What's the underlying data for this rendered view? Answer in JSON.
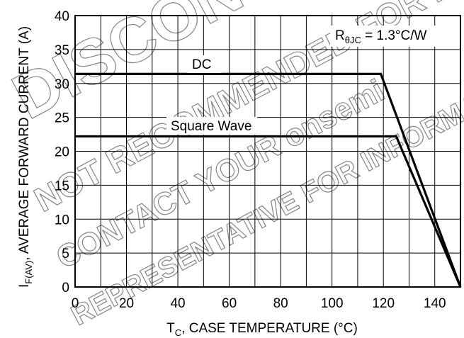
{
  "chart_data": {
    "type": "line",
    "xlabel": {
      "prefix": "T",
      "sub": "C",
      "rest": ", CASE TEMPERATURE (°C)"
    },
    "ylabel": {
      "prefix": "I",
      "sub": "F(AV)",
      "rest": ", AVERAGE FORWARD CURRENT (A)"
    },
    "xlim": [
      0,
      150
    ],
    "ylim": [
      0,
      40
    ],
    "xticks": [
      0,
      20,
      40,
      60,
      80,
      100,
      120,
      140
    ],
    "yticks": [
      0,
      5,
      10,
      15,
      20,
      25,
      30,
      35,
      40
    ],
    "grid": true,
    "grid_x_step": 10,
    "grid_y_step": 5,
    "series": [
      {
        "name": "DC",
        "x": [
          0,
          119,
          150
        ],
        "y": [
          31.4,
          31.4,
          0
        ]
      },
      {
        "name": "Square Wave",
        "x": [
          0,
          125,
          150
        ],
        "y": [
          22.2,
          22.2,
          0
        ]
      }
    ],
    "annotation": {
      "prefix": "R",
      "sub": "θJC",
      "rest": " = 1.3°C/W"
    }
  },
  "watermark": {
    "lines": [
      "DISCONTINUED",
      "NOT RECOMMENDED FOR NEW DESIGN",
      "CONTACT YOUR onsemi",
      "REPRESENTATIVE FOR INFORMATION"
    ],
    "color": "#777777"
  }
}
